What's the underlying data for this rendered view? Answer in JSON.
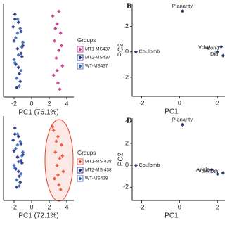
{
  "chart_data": [
    {
      "type": "scatter",
      "x_label": "PC1 (76.1%)",
      "legend_title": "Groups",
      "xlim": [
        -3.2,
        4.8
      ],
      "xticks": [
        -2,
        0,
        2,
        4
      ],
      "ylim": [
        -3,
        3
      ],
      "series": [
        {
          "name": "MT1-MS437",
          "color": "#c2267f",
          "x": [
            2.4,
            2.9,
            3.3,
            2.6,
            3.1,
            2.8,
            3.5,
            2.5,
            3.0,
            3.2,
            2.7,
            3.4,
            2.9,
            3.1
          ],
          "values": [
            2.2,
            1.7,
            1.1,
            0.6,
            0.0,
            -0.5,
            -1.0,
            -1.6,
            -2.1,
            -2.5,
            1.4,
            0.3,
            -1.3,
            2.5
          ]
        },
        {
          "name": "MT2-MS437",
          "color": "#1a237e",
          "x": [
            -1.9,
            -1.5,
            -1.2,
            -2.0,
            -1.6,
            -1.1,
            -1.8,
            -1.4,
            -1.3,
            -1.7,
            -2.1,
            -1.0,
            -1.5,
            -1.9,
            -1.2
          ],
          "values": [
            2.3,
            1.8,
            1.2,
            0.6,
            0.1,
            -0.4,
            -0.9,
            -1.5,
            -2.0,
            -2.4,
            1.5,
            0.3,
            -1.1,
            2.0,
            -0.2
          ]
        },
        {
          "name": "WT-MS437",
          "color": "#2f5fb3",
          "x": [
            -1.6,
            -1.3,
            -1.8,
            -1.1,
            -1.5,
            -1.9,
            -1.2,
            -1.7,
            -1.4,
            -1.0,
            -2.0,
            -1.6
          ],
          "values": [
            2.0,
            1.4,
            0.8,
            0.2,
            -0.3,
            -0.8,
            -1.3,
            -1.8,
            -2.3,
            0.5,
            -0.6,
            1.1
          ]
        }
      ]
    },
    {
      "type": "scatter",
      "panel": "B",
      "x_label": "PC1",
      "y_label": "PC2",
      "color": "#2c3e70",
      "xlim": [
        -2.5,
        2.4
      ],
      "xticks": [
        -2,
        0,
        2
      ],
      "ylim": [
        -3.5,
        3.8
      ],
      "yticks": [
        -2,
        0,
        2
      ],
      "labels": [
        "Planarity",
        "Coulomb",
        "Bond",
        "VdW",
        "Dih"
      ],
      "x": [
        0.15,
        -2.3,
        2.2,
        2.0,
        2.3
      ],
      "values": [
        3.2,
        0.0,
        0.4,
        0.0,
        -0.3
      ]
    },
    {
      "type": "scatter",
      "x_label": "PC1 (72.1%)",
      "legend_title": "Groups",
      "xlim": [
        -3.2,
        4.8
      ],
      "xticks": [
        -2,
        0,
        2,
        4
      ],
      "ylim": [
        -3.5,
        3.5
      ],
      "series": [
        {
          "name": "MT1-MS 438",
          "color": "#e8452c",
          "x": [
            2.5,
            3.0,
            3.4,
            2.7,
            3.2,
            2.9,
            3.6,
            2.6,
            3.1,
            3.3,
            2.8,
            3.5,
            3.0,
            2.4
          ],
          "values": [
            2.3,
            1.8,
            1.1,
            0.5,
            0.0,
            -0.6,
            -1.1,
            -1.7,
            -2.2,
            -2.6,
            1.4,
            0.2,
            -1.4,
            2.6
          ]
        },
        {
          "name": "MT2-MS 438",
          "color": "#1a237e",
          "x": [
            -1.9,
            -1.5,
            -1.2,
            -2.0,
            -1.6,
            -1.1,
            -1.8,
            -1.4,
            -1.3,
            -1.7,
            -2.1,
            -1.0,
            -1.5,
            -1.9,
            -1.2
          ],
          "values": [
            2.5,
            1.8,
            1.2,
            0.6,
            0.1,
            -0.4,
            -0.9,
            -1.5,
            -2.0,
            -2.4,
            1.5,
            0.3,
            -1.1,
            2.0,
            -0.2
          ]
        },
        {
          "name": "WT-MS438",
          "color": "#2f5fb3",
          "x": [
            -1.6,
            -1.3,
            -1.8,
            -1.1,
            -1.5,
            -1.9,
            -1.2,
            -1.7,
            -1.4,
            -1.0,
            -2.0,
            -1.6
          ],
          "values": [
            2.0,
            1.4,
            0.8,
            0.2,
            -0.3,
            -0.8,
            -1.3,
            -1.8,
            -2.3,
            0.5,
            -0.6,
            1.1
          ]
        }
      ]
    },
    {
      "type": "scatter",
      "panel": "D",
      "x_label": "PC1",
      "y_label": "PC2",
      "color": "#2c3e70",
      "xlim": [
        -2.5,
        2.4
      ],
      "xticks": [
        -2,
        0,
        2
      ],
      "ylim": [
        -3.2,
        4.3
      ],
      "yticks": [
        -2,
        0,
        2,
        4
      ],
      "labels": [
        "Planarity",
        "Coulomb",
        "VdW",
        "Angle",
        "Dih"
      ],
      "x": [
        0.15,
        -2.3,
        1.7,
        2.0,
        2.3
      ],
      "values": [
        3.7,
        0.0,
        -0.4,
        -0.8,
        -0.7
      ]
    }
  ]
}
